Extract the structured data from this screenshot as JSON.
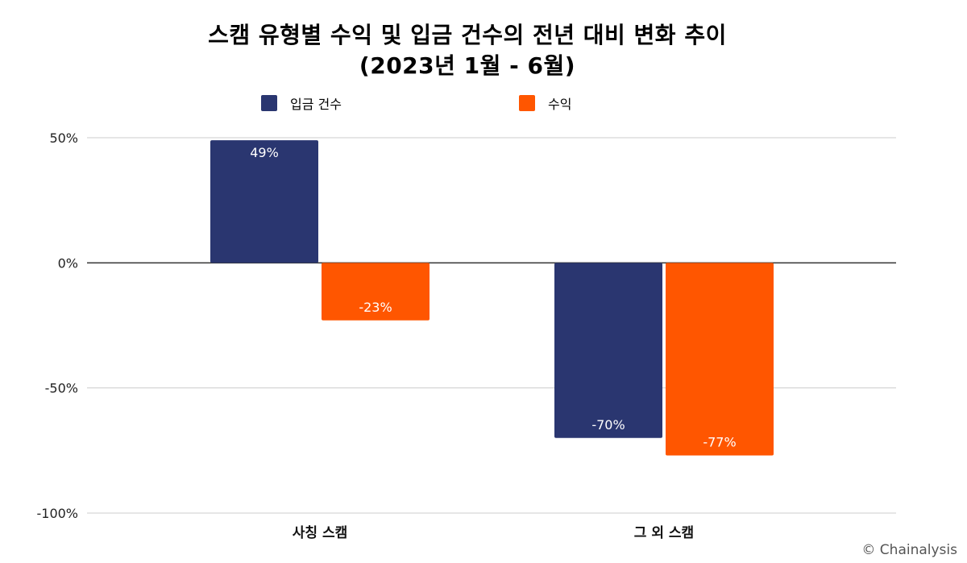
{
  "chart_data": {
    "type": "bar",
    "title_line1": "스캠 유형별 수익 및 입금 건수의 전년 대비 변화 추이",
    "title_line2": "(2023년 1월 - 6월)",
    "categories": [
      "사칭 스캠",
      "그 외 스캠"
    ],
    "series": [
      {
        "name": "입금 건수",
        "color": "#2a3670",
        "values": [
          49,
          -70
        ],
        "labels": [
          "49%",
          "-70%"
        ]
      },
      {
        "name": "수익",
        "color": "#ff5600",
        "values": [
          -23,
          -77
        ],
        "labels": [
          "-23%",
          "-77%"
        ]
      }
    ],
    "y_ticks": [
      {
        "value": 50,
        "label": "50%"
      },
      {
        "value": 0,
        "label": "0%"
      },
      {
        "value": -50,
        "label": "-50%"
      },
      {
        "value": -100,
        "label": "-100%"
      }
    ],
    "ylim": [
      -100,
      50
    ],
    "grid": true,
    "legend_position": "top"
  },
  "credit": "© Chainalysis"
}
